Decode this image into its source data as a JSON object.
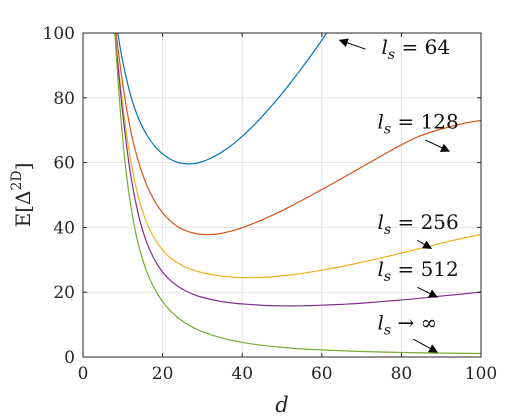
{
  "chart_data": {
    "type": "line",
    "xlabel": "d",
    "ylabel": "E[Δ²ᴰ]",
    "ylabel_parts": {
      "prefix": "E[",
      "symbol": "Δ",
      "superscript": "2D",
      "suffix": "]"
    },
    "xlim": [
      0,
      100
    ],
    "ylim": [
      0,
      100
    ],
    "x_ticks": [
      0,
      20,
      40,
      60,
      80,
      100
    ],
    "y_ticks": [
      0,
      20,
      40,
      60,
      80,
      100
    ],
    "grid": true,
    "legend": "inline annotations with arrows",
    "series": [
      {
        "name": "l_s = 64",
        "color": "#0072BD",
        "x": [
          8,
          9,
          10,
          12,
          14,
          16,
          18,
          20,
          22,
          24,
          26,
          28,
          30,
          32,
          34,
          36,
          38,
          40,
          42,
          44,
          46,
          48,
          50,
          52,
          54,
          56,
          58,
          60,
          62,
          64,
          66
        ],
        "y": [
          105,
          98,
          91,
          80.6,
          73.5,
          68.6,
          65.1,
          62.7,
          61.0,
          60.0,
          59.6,
          59.7,
          60.3,
          61.3,
          62.6,
          64.2,
          66.0,
          68.1,
          70.4,
          72.9,
          75.6,
          78.4,
          81.3,
          84.4,
          87.6,
          90.9,
          94.3,
          97.8,
          101.4,
          105,
          108.6
        ]
      },
      {
        "name": "l_s = 128",
        "color": "#D95319",
        "x": [
          8,
          10,
          12,
          14,
          16,
          18,
          20,
          22,
          24,
          26,
          28,
          30,
          32,
          34,
          36,
          38,
          40,
          44,
          48,
          52,
          56,
          60,
          64,
          68,
          72,
          76,
          80,
          84,
          88,
          92,
          96,
          100
        ],
        "y": [
          103,
          84,
          69.8,
          60.0,
          53.1,
          48.1,
          44.5,
          41.9,
          40.1,
          38.9,
          38.2,
          37.8,
          37.8,
          38.0,
          38.5,
          39.1,
          39.9,
          41.8,
          44.0,
          46.4,
          49.0,
          51.7,
          54.4,
          57.2,
          60.0,
          62.8,
          65.5,
          67.9,
          69.6,
          71.0,
          72.2,
          73.0
        ]
      },
      {
        "name": "l_s = 256",
        "color": "#EDB120",
        "x": [
          8,
          10,
          12,
          14,
          16,
          18,
          20,
          22,
          24,
          26,
          28,
          30,
          32,
          34,
          36,
          38,
          40,
          44,
          48,
          52,
          56,
          60,
          64,
          68,
          72,
          76,
          80,
          84,
          88,
          92,
          96,
          100
        ],
        "y": [
          100,
          77.5,
          60.5,
          49.0,
          41.5,
          36.5,
          33.0,
          30.6,
          28.9,
          27.6,
          26.7,
          26.0,
          25.5,
          25.1,
          24.8,
          24.6,
          24.5,
          24.5,
          24.8,
          25.3,
          26.0,
          26.8,
          27.7,
          28.7,
          29.8,
          30.9,
          32.1,
          33.3,
          34.5,
          35.7,
          36.8,
          37.8
        ]
      },
      {
        "name": "l_s = 512",
        "color": "#7E2F8E",
        "x": [
          8,
          10,
          12,
          14,
          16,
          18,
          20,
          22,
          24,
          26,
          28,
          30,
          34,
          38,
          42,
          46,
          50,
          54,
          58,
          62,
          66,
          70,
          74,
          78,
          82,
          86,
          90,
          94,
          100
        ],
        "y": [
          100,
          75.0,
          56.0,
          43.5,
          35.4,
          30.0,
          26.2,
          23.6,
          21.7,
          20.3,
          19.2,
          18.4,
          17.3,
          16.6,
          16.2,
          15.9,
          15.8,
          15.8,
          15.9,
          16.1,
          16.3,
          16.6,
          17.0,
          17.4,
          17.8,
          18.3,
          18.8,
          19.3,
          20.0
        ]
      },
      {
        "name": "l_s → ∞",
        "color": "#77AC30",
        "x": [
          8,
          9,
          10,
          11,
          12,
          13,
          14,
          16,
          18,
          20,
          22,
          24,
          26,
          28,
          30,
          35,
          40,
          45,
          50,
          55,
          60,
          70,
          80,
          90,
          100
        ],
        "y": [
          100,
          82.0,
          67.0,
          55.5,
          46.7,
          39.8,
          34.3,
          26.4,
          21.0,
          17.1,
          14.2,
          12.0,
          10.3,
          8.9,
          7.8,
          5.8,
          4.5,
          3.6,
          3.0,
          2.5,
          2.2,
          1.7,
          1.4,
          1.2,
          1.1
        ]
      }
    ],
    "annotations": [
      {
        "label_main": "l",
        "label_sub": "s",
        "label_rest": " = 64",
        "text_at": [
          75,
          93.5
        ],
        "arrow_from": [
          71,
          95.0
        ],
        "arrow_to": [
          64.5,
          97.8
        ]
      },
      {
        "label_main": "l",
        "label_sub": "s",
        "label_rest": " = 128",
        "text_at": [
          74,
          70.5
        ],
        "arrow_from": [
          86,
          67.0
        ],
        "arrow_to": [
          92,
          63.5
        ]
      },
      {
        "label_main": "l",
        "label_sub": "s",
        "label_rest": " = 256",
        "text_at": [
          74,
          39.5
        ],
        "arrow_from": [
          84,
          36.0
        ],
        "arrow_to": [
          87.5,
          33.5
        ]
      },
      {
        "label_main": "l",
        "label_sub": "s",
        "label_rest": " = 512",
        "text_at": [
          74,
          25.0
        ],
        "arrow_from": [
          84,
          21.5
        ],
        "arrow_to": [
          89,
          18.5
        ]
      },
      {
        "label_main": "l",
        "label_sub": "s",
        "label_rest": " → ∞",
        "text_at": [
          74,
          8.5
        ],
        "arrow_from": [
          83,
          5.5
        ],
        "arrow_to": [
          89,
          1.5
        ]
      }
    ]
  }
}
